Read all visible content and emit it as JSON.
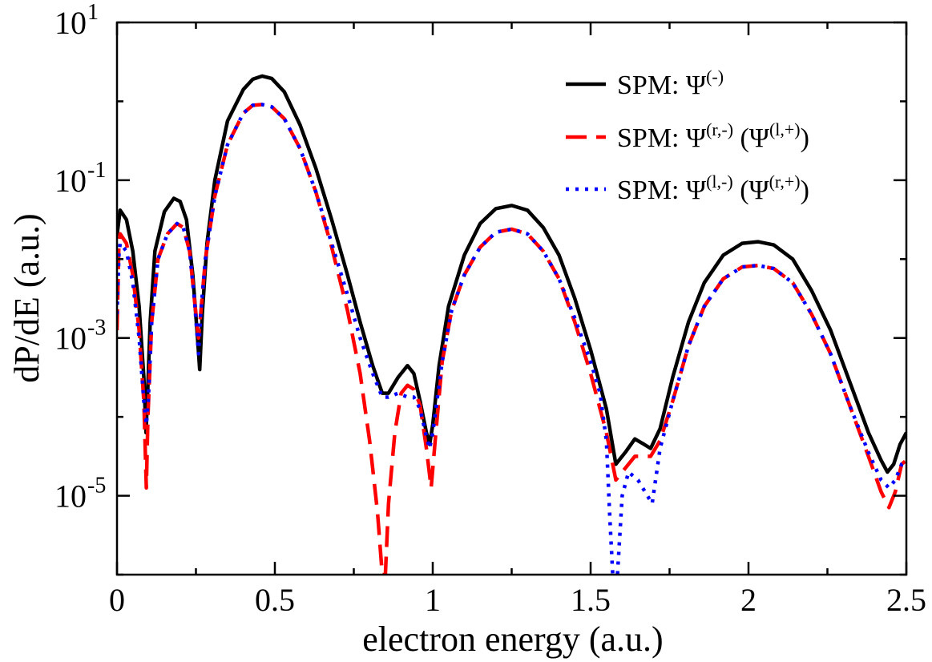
{
  "chart_data": {
    "type": "line",
    "title": "",
    "xlabel": "electron energy (a.u.)",
    "ylabel": "dP/dE (a.u.)",
    "xlim": [
      0,
      2.5
    ],
    "ylim_log10": [
      -6,
      1
    ],
    "y_scale": "log",
    "x_ticks": [
      {
        "value": 0,
        "label": "0"
      },
      {
        "value": 0.5,
        "label": "0.5"
      },
      {
        "value": 1,
        "label": "1"
      },
      {
        "value": 1.5,
        "label": "1.5"
      },
      {
        "value": 2,
        "label": "2"
      },
      {
        "value": 2.5,
        "label": "2.5"
      }
    ],
    "y_ticks": [
      {
        "exp": 1,
        "base": "10",
        "sup": "1"
      },
      {
        "exp": -1,
        "base": "10",
        "sup": "-1"
      },
      {
        "exp": -3,
        "base": "10",
        "sup": "-3"
      },
      {
        "exp": -5,
        "base": "10",
        "sup": "-5"
      }
    ],
    "legend_position": "top-right",
    "series": [
      {
        "name": "SPM: Ψ(-)",
        "legend_prefix": "SPM: Ψ",
        "legend_sup1": "(-)",
        "legend_mid": "",
        "legend_sup2": "",
        "legend_suffix": "",
        "color": "#000000",
        "style": "solid",
        "points": [
          [
            0,
            -1.7
          ],
          [
            0.01,
            -1.38
          ],
          [
            0.03,
            -1.5
          ],
          [
            0.05,
            -1.9
          ],
          [
            0.07,
            -2.6
          ],
          [
            0.085,
            -3.5
          ],
          [
            0.092,
            -4.2
          ],
          [
            0.097,
            -3.7
          ],
          [
            0.105,
            -2.8
          ],
          [
            0.12,
            -1.9
          ],
          [
            0.15,
            -1.4
          ],
          [
            0.18,
            -1.23
          ],
          [
            0.2,
            -1.27
          ],
          [
            0.22,
            -1.5
          ],
          [
            0.24,
            -2.2
          ],
          [
            0.255,
            -3.0
          ],
          [
            0.262,
            -3.4
          ],
          [
            0.27,
            -2.7
          ],
          [
            0.285,
            -1.8
          ],
          [
            0.31,
            -1.0
          ],
          [
            0.35,
            -0.25
          ],
          [
            0.4,
            0.15
          ],
          [
            0.43,
            0.28
          ],
          [
            0.46,
            0.32
          ],
          [
            0.49,
            0.29
          ],
          [
            0.53,
            0.12
          ],
          [
            0.58,
            -0.3
          ],
          [
            0.63,
            -0.85
          ],
          [
            0.68,
            -1.5
          ],
          [
            0.73,
            -2.2
          ],
          [
            0.77,
            -2.8
          ],
          [
            0.81,
            -3.35
          ],
          [
            0.84,
            -3.7
          ],
          [
            0.86,
            -3.7
          ],
          [
            0.89,
            -3.5
          ],
          [
            0.92,
            -3.35
          ],
          [
            0.94,
            -3.45
          ],
          [
            0.96,
            -3.8
          ],
          [
            0.98,
            -4.2
          ],
          [
            0.99,
            -4.35
          ],
          [
            1.0,
            -4.1
          ],
          [
            1.02,
            -3.35
          ],
          [
            1.05,
            -2.6
          ],
          [
            1.1,
            -1.95
          ],
          [
            1.15,
            -1.55
          ],
          [
            1.2,
            -1.36
          ],
          [
            1.25,
            -1.32
          ],
          [
            1.3,
            -1.38
          ],
          [
            1.35,
            -1.6
          ],
          [
            1.4,
            -1.95
          ],
          [
            1.45,
            -2.5
          ],
          [
            1.5,
            -3.15
          ],
          [
            1.55,
            -3.9
          ],
          [
            1.58,
            -4.6
          ],
          [
            1.61,
            -4.45
          ],
          [
            1.64,
            -4.28
          ],
          [
            1.67,
            -4.35
          ],
          [
            1.69,
            -4.4
          ],
          [
            1.72,
            -4.15
          ],
          [
            1.76,
            -3.5
          ],
          [
            1.81,
            -2.8
          ],
          [
            1.86,
            -2.3
          ],
          [
            1.92,
            -1.95
          ],
          [
            1.98,
            -1.8
          ],
          [
            2.03,
            -1.78
          ],
          [
            2.08,
            -1.82
          ],
          [
            2.14,
            -2.0
          ],
          [
            2.2,
            -2.4
          ],
          [
            2.26,
            -2.9
          ],
          [
            2.32,
            -3.55
          ],
          [
            2.38,
            -4.2
          ],
          [
            2.42,
            -4.55
          ],
          [
            2.44,
            -4.7
          ],
          [
            2.46,
            -4.6
          ],
          [
            2.48,
            -4.35
          ],
          [
            2.5,
            -4.2
          ]
        ]
      },
      {
        "name": "SPM: Ψ(r,-) (Ψ(l,+))",
        "legend_prefix": "SPM: Ψ",
        "legend_sup1": "(r,-)",
        "legend_mid": " (Ψ",
        "legend_sup2": "(l,+)",
        "legend_suffix": ")",
        "color": "#ff0000",
        "style": "dashed",
        "points": [
          [
            0,
            -2.9
          ],
          [
            0.006,
            -1.8
          ],
          [
            0.01,
            -1.68
          ],
          [
            0.03,
            -1.8
          ],
          [
            0.05,
            -2.2
          ],
          [
            0.07,
            -2.9
          ],
          [
            0.085,
            -3.8
          ],
          [
            0.093,
            -4.9
          ],
          [
            0.098,
            -4.0
          ],
          [
            0.11,
            -2.8
          ],
          [
            0.13,
            -2.0
          ],
          [
            0.16,
            -1.68
          ],
          [
            0.19,
            -1.55
          ],
          [
            0.21,
            -1.6
          ],
          [
            0.23,
            -1.9
          ],
          [
            0.245,
            -2.5
          ],
          [
            0.258,
            -3.0
          ],
          [
            0.265,
            -2.7
          ],
          [
            0.28,
            -2.0
          ],
          [
            0.31,
            -1.2
          ],
          [
            0.35,
            -0.55
          ],
          [
            0.4,
            -0.15
          ],
          [
            0.43,
            -0.05
          ],
          [
            0.46,
            -0.04
          ],
          [
            0.49,
            -0.07
          ],
          [
            0.53,
            -0.22
          ],
          [
            0.58,
            -0.6
          ],
          [
            0.63,
            -1.15
          ],
          [
            0.68,
            -1.85
          ],
          [
            0.73,
            -2.65
          ],
          [
            0.77,
            -3.45
          ],
          [
            0.8,
            -4.3
          ],
          [
            0.825,
            -5.2
          ],
          [
            0.84,
            -6.0
          ],
          [
            0.85,
            -6.0
          ],
          [
            0.86,
            -5.1
          ],
          [
            0.88,
            -4.2
          ],
          [
            0.9,
            -3.7
          ],
          [
            0.92,
            -3.6
          ],
          [
            0.94,
            -3.65
          ],
          [
            0.96,
            -3.85
          ],
          [
            0.98,
            -4.4
          ],
          [
            0.995,
            -4.9
          ],
          [
            1.01,
            -4.2
          ],
          [
            1.03,
            -3.3
          ],
          [
            1.06,
            -2.65
          ],
          [
            1.1,
            -2.2
          ],
          [
            1.15,
            -1.85
          ],
          [
            1.2,
            -1.66
          ],
          [
            1.25,
            -1.62
          ],
          [
            1.3,
            -1.68
          ],
          [
            1.35,
            -1.9
          ],
          [
            1.4,
            -2.25
          ],
          [
            1.45,
            -2.8
          ],
          [
            1.5,
            -3.45
          ],
          [
            1.55,
            -4.2
          ],
          [
            1.58,
            -4.8
          ],
          [
            1.61,
            -4.65
          ],
          [
            1.64,
            -4.5
          ],
          [
            1.67,
            -4.5
          ],
          [
            1.69,
            -4.5
          ],
          [
            1.72,
            -4.3
          ],
          [
            1.76,
            -3.8
          ],
          [
            1.81,
            -3.1
          ],
          [
            1.86,
            -2.6
          ],
          [
            1.92,
            -2.25
          ],
          [
            1.98,
            -2.1
          ],
          [
            2.03,
            -2.08
          ],
          [
            2.08,
            -2.12
          ],
          [
            2.14,
            -2.3
          ],
          [
            2.2,
            -2.7
          ],
          [
            2.26,
            -3.2
          ],
          [
            2.32,
            -3.85
          ],
          [
            2.38,
            -4.5
          ],
          [
            2.42,
            -4.95
          ],
          [
            2.445,
            -5.15
          ],
          [
            2.465,
            -4.95
          ],
          [
            2.485,
            -4.6
          ],
          [
            2.5,
            -4.55
          ]
        ]
      },
      {
        "name": "SPM: Ψ(l,-) (Ψ(r,+))",
        "legend_prefix": "SPM: Ψ",
        "legend_sup1": "(l,-)",
        "legend_mid": " (Ψ",
        "legend_sup2": "(r,+)",
        "legend_suffix": ")",
        "color": "#0000ff",
        "style": "dotted",
        "points": [
          [
            0,
            -2.7
          ],
          [
            0.006,
            -1.95
          ],
          [
            0.01,
            -1.8
          ],
          [
            0.03,
            -1.9
          ],
          [
            0.05,
            -2.3
          ],
          [
            0.07,
            -3.0
          ],
          [
            0.085,
            -3.8
          ],
          [
            0.093,
            -4.1
          ],
          [
            0.099,
            -3.8
          ],
          [
            0.11,
            -2.8
          ],
          [
            0.13,
            -2.0
          ],
          [
            0.16,
            -1.68
          ],
          [
            0.19,
            -1.55
          ],
          [
            0.21,
            -1.6
          ],
          [
            0.23,
            -1.9
          ],
          [
            0.245,
            -2.5
          ],
          [
            0.258,
            -3.2
          ],
          [
            0.265,
            -2.7
          ],
          [
            0.28,
            -2.0
          ],
          [
            0.31,
            -1.2
          ],
          [
            0.35,
            -0.55
          ],
          [
            0.4,
            -0.15
          ],
          [
            0.43,
            -0.05
          ],
          [
            0.46,
            -0.04
          ],
          [
            0.49,
            -0.07
          ],
          [
            0.53,
            -0.22
          ],
          [
            0.58,
            -0.6
          ],
          [
            0.63,
            -1.15
          ],
          [
            0.68,
            -1.8
          ],
          [
            0.73,
            -2.45
          ],
          [
            0.77,
            -3.0
          ],
          [
            0.81,
            -3.45
          ],
          [
            0.84,
            -3.75
          ],
          [
            0.86,
            -3.75
          ],
          [
            0.89,
            -3.7
          ],
          [
            0.92,
            -3.75
          ],
          [
            0.94,
            -3.75
          ],
          [
            0.96,
            -3.9
          ],
          [
            0.98,
            -4.25
          ],
          [
            0.99,
            -4.4
          ],
          [
            1.0,
            -4.2
          ],
          [
            1.03,
            -3.3
          ],
          [
            1.06,
            -2.65
          ],
          [
            1.1,
            -2.2
          ],
          [
            1.15,
            -1.85
          ],
          [
            1.2,
            -1.66
          ],
          [
            1.25,
            -1.62
          ],
          [
            1.3,
            -1.68
          ],
          [
            1.35,
            -1.9
          ],
          [
            1.4,
            -2.25
          ],
          [
            1.45,
            -2.75
          ],
          [
            1.5,
            -3.3
          ],
          [
            1.53,
            -3.7
          ],
          [
            1.55,
            -4.3
          ],
          [
            1.56,
            -5.2
          ],
          [
            1.57,
            -6.0
          ],
          [
            1.585,
            -6.0
          ],
          [
            1.6,
            -5.0
          ],
          [
            1.62,
            -4.7
          ],
          [
            1.65,
            -4.8
          ],
          [
            1.68,
            -5.0
          ],
          [
            1.695,
            -5.1
          ],
          [
            1.72,
            -4.4
          ],
          [
            1.76,
            -3.8
          ],
          [
            1.81,
            -3.1
          ],
          [
            1.86,
            -2.6
          ],
          [
            1.92,
            -2.25
          ],
          [
            1.98,
            -2.1
          ],
          [
            2.03,
            -2.08
          ],
          [
            2.08,
            -2.12
          ],
          [
            2.14,
            -2.3
          ],
          [
            2.2,
            -2.7
          ],
          [
            2.26,
            -3.2
          ],
          [
            2.32,
            -3.85
          ],
          [
            2.38,
            -4.45
          ],
          [
            2.42,
            -4.8
          ],
          [
            2.445,
            -4.9
          ],
          [
            2.465,
            -4.8
          ],
          [
            2.485,
            -4.6
          ],
          [
            2.5,
            -4.55
          ]
        ]
      }
    ]
  }
}
